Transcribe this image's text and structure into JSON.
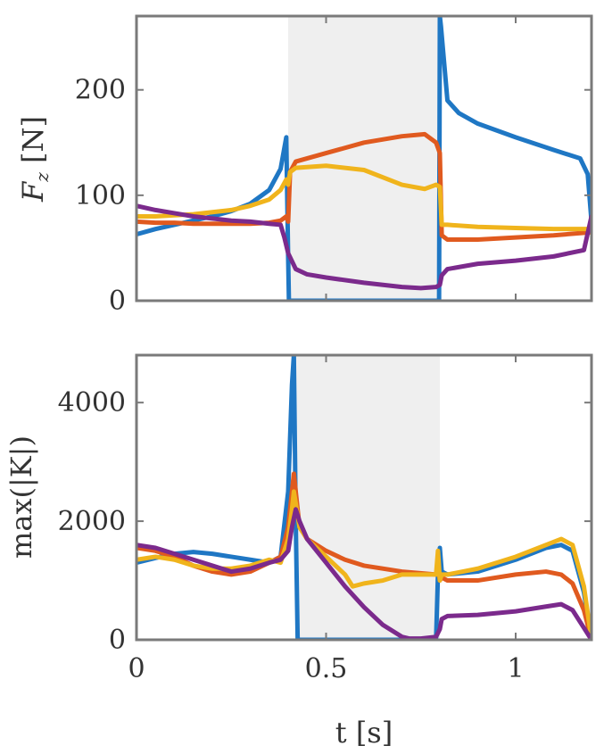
{
  "chart_data": [
    {
      "type": "line",
      "title": "",
      "xlabel": "",
      "ylabel": "F_z [N]",
      "ylabel_main": "F",
      "ylabel_sub": "z",
      "ylabel_unit": " [N]",
      "xlim": [
        0,
        1.2
      ],
      "ylim": [
        0,
        270
      ],
      "yticks": [
        0,
        100,
        200
      ],
      "ytick_labels": [
        "0",
        "100",
        "200"
      ],
      "xticks": [
        0,
        0.5,
        1
      ],
      "shaded_interval": [
        0.4,
        0.8
      ],
      "legend": "none",
      "series": [
        {
          "color": "#1f77c4",
          "x": [
            0,
            0.05,
            0.1,
            0.15,
            0.2,
            0.25,
            0.3,
            0.35,
            0.38,
            0.395,
            0.4,
            0.402,
            0.41,
            0.5,
            0.6,
            0.7,
            0.79,
            0.798,
            0.8,
            0.803,
            0.82,
            0.85,
            0.9,
            1.0,
            1.1,
            1.17,
            1.19,
            1.2
          ],
          "y": [
            63,
            68,
            72,
            76,
            80,
            85,
            92,
            105,
            125,
            155,
            40,
            0,
            0,
            0,
            0,
            0,
            0,
            0,
            270,
            260,
            190,
            178,
            168,
            155,
            143,
            135,
            120,
            75
          ]
        },
        {
          "color": "#e05a1f",
          "x": [
            0,
            0.05,
            0.1,
            0.15,
            0.2,
            0.25,
            0.3,
            0.35,
            0.38,
            0.395,
            0.4,
            0.405,
            0.42,
            0.5,
            0.6,
            0.7,
            0.76,
            0.79,
            0.8,
            0.805,
            0.82,
            0.9,
            1.0,
            1.1,
            1.2
          ],
          "y": [
            75,
            74,
            74,
            73,
            73,
            73,
            73,
            74,
            76,
            80,
            75,
            122,
            132,
            140,
            150,
            156,
            158,
            150,
            140,
            62,
            58,
            58,
            60,
            62,
            65
          ]
        },
        {
          "color": "#f0b41c",
          "x": [
            0,
            0.05,
            0.1,
            0.15,
            0.2,
            0.25,
            0.3,
            0.35,
            0.38,
            0.395,
            0.4,
            0.405,
            0.42,
            0.5,
            0.6,
            0.7,
            0.76,
            0.79,
            0.8,
            0.805,
            0.82,
            0.9,
            1.0,
            1.1,
            1.2
          ],
          "y": [
            80,
            80,
            81,
            82,
            84,
            86,
            90,
            96,
            105,
            115,
            110,
            122,
            126,
            128,
            124,
            110,
            106,
            110,
            108,
            72,
            72,
            70,
            69,
            68,
            68
          ]
        },
        {
          "color": "#7b2a8c",
          "x": [
            0,
            0.05,
            0.1,
            0.15,
            0.2,
            0.25,
            0.3,
            0.35,
            0.38,
            0.39,
            0.4,
            0.42,
            0.45,
            0.5,
            0.6,
            0.7,
            0.75,
            0.79,
            0.8,
            0.805,
            0.82,
            0.9,
            1.0,
            1.1,
            1.18,
            1.2
          ],
          "y": [
            90,
            86,
            83,
            80,
            78,
            76,
            75,
            73,
            72,
            60,
            45,
            30,
            25,
            22,
            17,
            13,
            12,
            13,
            15,
            24,
            30,
            35,
            38,
            42,
            48,
            80
          ]
        }
      ]
    },
    {
      "type": "line",
      "title": "",
      "xlabel": "t [s]",
      "ylabel": "max(|K|)",
      "xlim": [
        0,
        1.2
      ],
      "ylim": [
        0,
        4800
      ],
      "yticks": [
        0,
        2000,
        4000
      ],
      "ytick_labels": [
        "0",
        "2000",
        "4000"
      ],
      "xticks": [
        0,
        0.5,
        1
      ],
      "xtick_labels": [
        "0",
        "0.5",
        "1"
      ],
      "shaded_interval": [
        0.42,
        0.8
      ],
      "legend": "none",
      "series": [
        {
          "color": "#1f77c4",
          "x": [
            0,
            0.05,
            0.1,
            0.15,
            0.2,
            0.25,
            0.3,
            0.35,
            0.38,
            0.4,
            0.41,
            0.415,
            0.42,
            0.425,
            0.45,
            0.6,
            0.79,
            0.795,
            0.8,
            0.805,
            0.82,
            0.9,
            1.0,
            1.08,
            1.12,
            1.15,
            1.18,
            1.2
          ],
          "y": [
            1300,
            1380,
            1450,
            1480,
            1450,
            1400,
            1350,
            1300,
            1400,
            2500,
            4300,
            4800,
            2000,
            0,
            0,
            0,
            0,
            1100,
            1550,
            1150,
            1100,
            1150,
            1350,
            1550,
            1600,
            1500,
            800,
            0
          ]
        },
        {
          "color": "#e05a1f",
          "x": [
            0,
            0.05,
            0.1,
            0.15,
            0.2,
            0.25,
            0.3,
            0.35,
            0.38,
            0.4,
            0.41,
            0.415,
            0.42,
            0.43,
            0.45,
            0.5,
            0.55,
            0.6,
            0.7,
            0.79,
            0.795,
            0.8,
            0.805,
            0.82,
            0.9,
            1.0,
            1.08,
            1.12,
            1.15,
            1.18,
            1.2
          ],
          "y": [
            1550,
            1500,
            1400,
            1250,
            1150,
            1100,
            1150,
            1300,
            1400,
            1900,
            2500,
            2800,
            2500,
            1900,
            1700,
            1500,
            1350,
            1250,
            1150,
            1100,
            1300,
            1000,
            1050,
            1000,
            1000,
            1100,
            1150,
            1100,
            950,
            500,
            0
          ]
        },
        {
          "color": "#f0b41c",
          "x": [
            0,
            0.05,
            0.1,
            0.15,
            0.2,
            0.25,
            0.3,
            0.35,
            0.38,
            0.4,
            0.41,
            0.415,
            0.42,
            0.43,
            0.45,
            0.5,
            0.55,
            0.57,
            0.6,
            0.65,
            0.7,
            0.79,
            0.795,
            0.8,
            0.805,
            0.82,
            0.9,
            1.0,
            1.08,
            1.12,
            1.15,
            1.18,
            1.2
          ],
          "y": [
            1350,
            1400,
            1350,
            1250,
            1200,
            1200,
            1250,
            1350,
            1300,
            1700,
            2200,
            2500,
            2300,
            1900,
            1700,
            1400,
            1100,
            900,
            950,
            1000,
            1100,
            1100,
            1500,
            1000,
            1100,
            1100,
            1200,
            1400,
            1600,
            1700,
            1600,
            900,
            0
          ]
        },
        {
          "color": "#7b2a8c",
          "x": [
            0,
            0.05,
            0.1,
            0.15,
            0.2,
            0.25,
            0.3,
            0.35,
            0.38,
            0.4,
            0.41,
            0.42,
            0.43,
            0.45,
            0.5,
            0.55,
            0.6,
            0.65,
            0.7,
            0.72,
            0.75,
            0.79,
            0.8,
            0.805,
            0.82,
            0.9,
            1.0,
            1.08,
            1.12,
            1.15,
            1.18,
            1.2
          ],
          "y": [
            1600,
            1550,
            1450,
            1350,
            1250,
            1150,
            1200,
            1300,
            1350,
            1500,
            1900,
            2200,
            2000,
            1700,
            1300,
            900,
            550,
            250,
            50,
            20,
            20,
            50,
            180,
            350,
            400,
            420,
            480,
            560,
            600,
            500,
            200,
            0
          ]
        }
      ]
    }
  ]
}
